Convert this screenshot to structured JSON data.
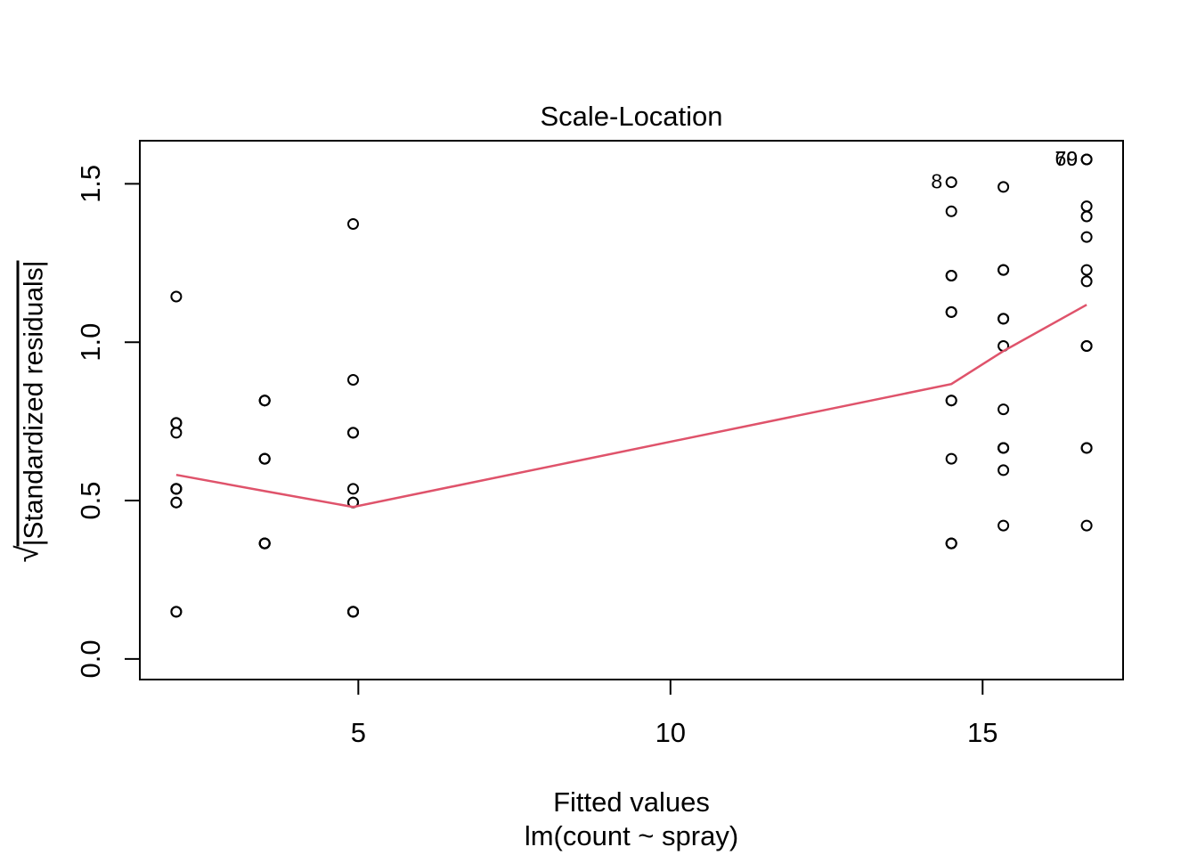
{
  "title": "Scale-Location",
  "xlabel": "Fitted values",
  "sublabel": "lm(count ~ spray)",
  "ylabel": {
    "radical": "√",
    "radicand": "|Standardized residuals|"
  },
  "colors": {
    "points": "#000000",
    "smooth_line": "#DF536B",
    "axis": "#000000",
    "background": "#ffffff"
  },
  "chart_data": {
    "type": "scatter",
    "title": "Scale-Location",
    "xlabel": "Fitted values",
    "sublabel": "lm(count ~ spray)",
    "ylabel": "sqrt(|Standardized residuals|)",
    "grid": false,
    "legend": false,
    "xlim": [
      1.5,
      17.25
    ],
    "ylim": [
      -0.065,
      1.636
    ],
    "x_ticks": [
      {
        "value": 5,
        "label": "5"
      },
      {
        "value": 10,
        "label": "10"
      },
      {
        "value": 15,
        "label": "15"
      }
    ],
    "y_ticks": [
      {
        "value": 0.0,
        "label": "0.0"
      },
      {
        "value": 0.5,
        "label": "0.5"
      },
      {
        "value": 1.0,
        "label": "1.0"
      },
      {
        "value": 1.5,
        "label": "1.5"
      }
    ],
    "point_style": {
      "shape": "open-circle",
      "radius": 5.5,
      "stroke_width": 2
    },
    "groups": [
      {
        "fitted": 2.083,
        "values": [
          0.745,
          0.537,
          1.144,
          0.149,
          0.494,
          0.537,
          0.149,
          0.537,
          0.494,
          0.745,
          0.537,
          0.714
        ]
      },
      {
        "fitted": 3.5,
        "values": [
          0.365,
          0.632,
          0.365,
          0.632,
          0.365,
          0.816,
          0.816,
          0.816,
          0.365,
          0.632,
          0.816,
          0.365
        ]
      },
      {
        "fitted": 4.917,
        "values": [
          0.714,
          0.149,
          1.373,
          0.537,
          0.494,
          0.714,
          0.149,
          0.149,
          0.149,
          0.149,
          0.881,
          0.494
        ]
      },
      {
        "fitted": 14.5,
        "values": [
          1.095,
          1.413,
          1.21,
          0.365,
          0.365,
          0.816,
          1.095,
          1.505,
          0.816,
          1.21,
          0.365,
          0.632
        ]
      },
      {
        "fitted": 15.333,
        "values": [
          1.074,
          0.666,
          1.228,
          1.074,
          0.421,
          0.596,
          0.666,
          0.666,
          0.988,
          1.228,
          1.49,
          0.788
        ]
      },
      {
        "fitted": 16.667,
        "values": [
          1.228,
          1.429,
          0.666,
          1.192,
          0.666,
          0.421,
          0.988,
          1.332,
          1.577,
          1.577,
          1.397,
          0.988
        ]
      }
    ],
    "smooth_line": {
      "color": "#DF536B",
      "points": [
        [
          2.083,
          0.581
        ],
        [
          3.5,
          0.53
        ],
        [
          4.917,
          0.48
        ],
        [
          14.5,
          0.868
        ],
        [
          15.333,
          0.972
        ],
        [
          16.667,
          1.118
        ]
      ]
    },
    "point_labels": [
      {
        "text": "8",
        "x": 14.5,
        "y": 1.505
      },
      {
        "text": "70",
        "x": 16.667,
        "y": 1.577
      },
      {
        "text": "69",
        "x": 16.667,
        "y": 1.577
      }
    ]
  }
}
